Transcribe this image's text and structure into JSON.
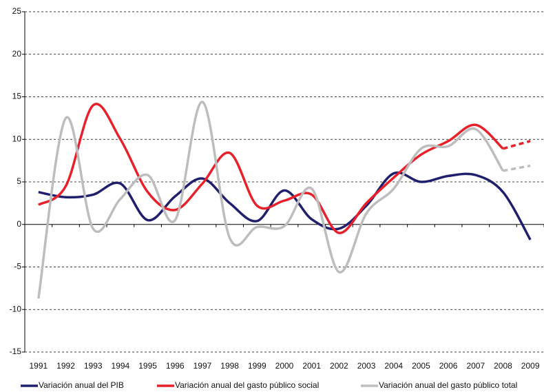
{
  "chart_data": {
    "type": "line",
    "categories": [
      "1991",
      "1992",
      "1993",
      "1994",
      "1995",
      "1996",
      "1997",
      "1998",
      "1999",
      "2000",
      "2001",
      "2002",
      "2003",
      "2004",
      "2005",
      "2006",
      "2007",
      "2008",
      "2009"
    ],
    "series": [
      {
        "name": "Variación anual del PIB",
        "color": "#1f1f6e",
        "dash_last": false,
        "values": [
          3.8,
          3.2,
          3.5,
          4.8,
          0.5,
          3.3,
          5.4,
          2.5,
          0.4,
          4.0,
          0.6,
          -0.5,
          2.2,
          6.0,
          5.0,
          5.7,
          5.8,
          3.8,
          -1.8
        ]
      },
      {
        "name": "Variación anual del gasto público social",
        "color": "#e8202a",
        "dash_last": true,
        "values": [
          2.3,
          4.5,
          14.0,
          10.0,
          3.8,
          1.7,
          4.8,
          8.4,
          2.2,
          2.8,
          3.5,
          -1.0,
          2.5,
          5.5,
          8.2,
          9.8,
          11.7,
          8.9,
          9.8
        ]
      },
      {
        "name": "Variación anual del gasto público total",
        "color": "#bdbdbd",
        "dash_last": true,
        "values": [
          -8.7,
          12.5,
          -0.5,
          3.0,
          5.8,
          0.5,
          14.4,
          -1.6,
          -0.3,
          -0.2,
          4.2,
          -5.6,
          1.3,
          4.2,
          8.9,
          9.2,
          11.2,
          6.3,
          6.9
        ]
      }
    ],
    "ylim": [
      -15,
      25
    ],
    "yticks": [
      -15,
      -10,
      -5,
      0,
      5,
      10,
      15,
      20,
      25
    ],
    "grid": true
  }
}
